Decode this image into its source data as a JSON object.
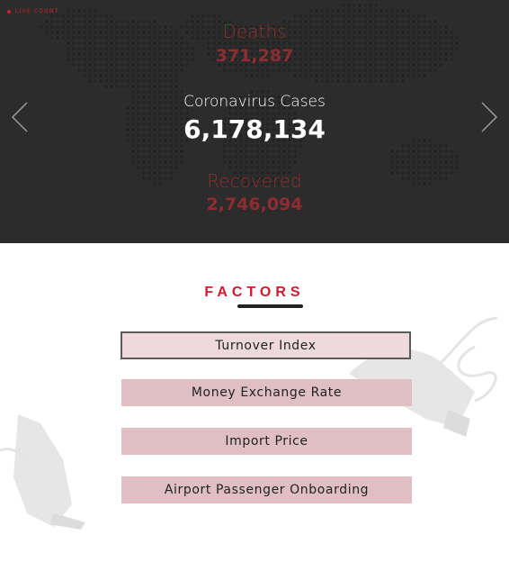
{
  "live": {
    "label": "LIVE COUNT"
  },
  "stats": {
    "deaths_label": "Deaths",
    "deaths_value": "371,287",
    "cases_label": "Coronavirus Cases",
    "cases_value": "6,178,134",
    "recovered_label": "Recovered",
    "recovered_value": "2,746,094"
  },
  "nav": {
    "prev_icon": "chevron-left-icon",
    "next_icon": "chevron-right-icon"
  },
  "factors": {
    "title": "FACTORS",
    "items": [
      {
        "label": "Turnover Index",
        "active": true
      },
      {
        "label": "Money Exchange Rate",
        "active": false
      },
      {
        "label": "Import Price",
        "active": false
      },
      {
        "label": "Airport Passenger Onboarding",
        "active": false
      }
    ]
  },
  "colors": {
    "accent": "#d6182e",
    "hero_bg": "#2c2c2c",
    "muted_red": "#8e2d31",
    "button_bg": "#dfbfc3"
  }
}
